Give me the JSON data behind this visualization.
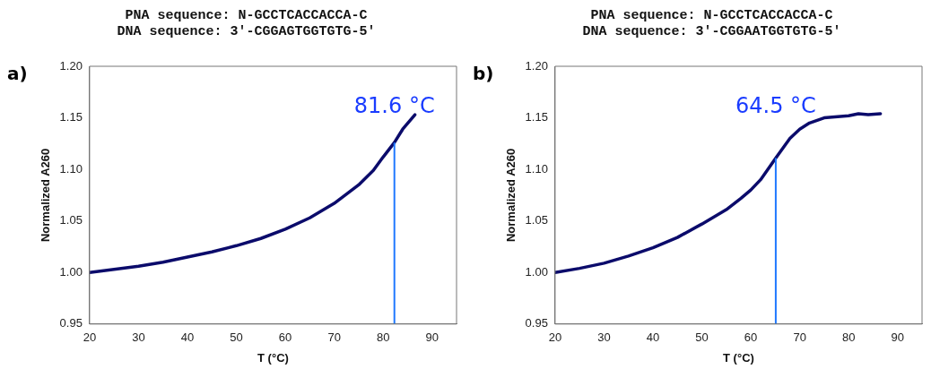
{
  "chart_data": [
    {
      "type": "line",
      "title": "PNA sequence: N-GCCTCACCACCA-C\nDNA sequence: 3′-CGGAGTGGTGTG-5′",
      "xlabel": "T (°C)",
      "ylabel": "Normalized A260",
      "annotations": [
        "a)"
      ],
      "x": [
        20,
        25,
        30,
        35,
        40,
        45,
        50,
        55,
        60,
        65,
        70,
        75,
        78,
        80,
        82.3,
        84,
        86.5
      ],
      "series": [
        {
          "color": "#0b0b6b",
          "values": [
            1.0,
            1.003,
            1.006,
            1.01,
            1.015,
            1.02,
            1.026,
            1.033,
            1.042,
            1.053,
            1.067,
            1.085,
            1.099,
            1.112,
            1.126,
            1.139,
            1.153
          ]
        }
      ],
      "xlim": [
        20,
        95
      ],
      "xticks": [
        20,
        30,
        40,
        50,
        60,
        70,
        80,
        90
      ],
      "ylim": [
        0.95,
        1.2
      ],
      "yticks": [
        {
          "value": 0.95,
          "label": "0.95"
        },
        {
          "value": 1.0,
          "label": "1.00"
        },
        {
          "value": 1.05,
          "label": "1.05"
        },
        {
          "value": 1.1,
          "label": "1.10"
        },
        {
          "value": 1.15,
          "label": "1.15"
        },
        {
          "value": 1.2,
          "label": "1.20"
        }
      ],
      "ref_lines": [
        {
          "axis": "x",
          "value": 82.3,
          "label": "81.6 °C",
          "color": "#1f78ff"
        }
      ],
      "grid": false,
      "legend": false,
      "marker": "none",
      "line_style": "solid"
    },
    {
      "type": "line",
      "title": "PNA sequence: N-GCCTCACCACCA-C\nDNA sequence: 3′-CGGAATGGTGTG-5′",
      "xlabel": "T (°C)",
      "ylabel": "Normalized A260",
      "annotations": [
        "b)"
      ],
      "x": [
        20,
        25,
        30,
        35,
        40,
        45,
        50,
        55,
        58,
        60,
        62,
        65.1,
        68,
        70,
        72,
        75,
        80,
        82,
        84,
        86.5
      ],
      "series": [
        {
          "color": "#0b0b6b",
          "values": [
            1.0,
            1.004,
            1.009,
            1.016,
            1.024,
            1.034,
            1.047,
            1.061,
            1.072,
            1.08,
            1.09,
            1.111,
            1.13,
            1.139,
            1.145,
            1.15,
            1.152,
            1.154,
            1.153,
            1.154
          ]
        }
      ],
      "xlim": [
        20,
        95
      ],
      "xticks": [
        20,
        30,
        40,
        50,
        60,
        70,
        80,
        90
      ],
      "ylim": [
        0.95,
        1.2
      ],
      "yticks": [
        {
          "value": 0.95,
          "label": "0.95"
        },
        {
          "value": 1.0,
          "label": "1.00"
        },
        {
          "value": 1.05,
          "label": "1.05"
        },
        {
          "value": 1.1,
          "label": "1.10"
        },
        {
          "value": 1.15,
          "label": "1.15"
        },
        {
          "value": 1.2,
          "label": "1.20"
        }
      ],
      "ref_lines": [
        {
          "axis": "x",
          "value": 65.1,
          "label": "64.5 °C",
          "color": "#1f78ff"
        }
      ],
      "grid": false,
      "legend": false,
      "marker": "none",
      "line_style": "solid"
    }
  ]
}
